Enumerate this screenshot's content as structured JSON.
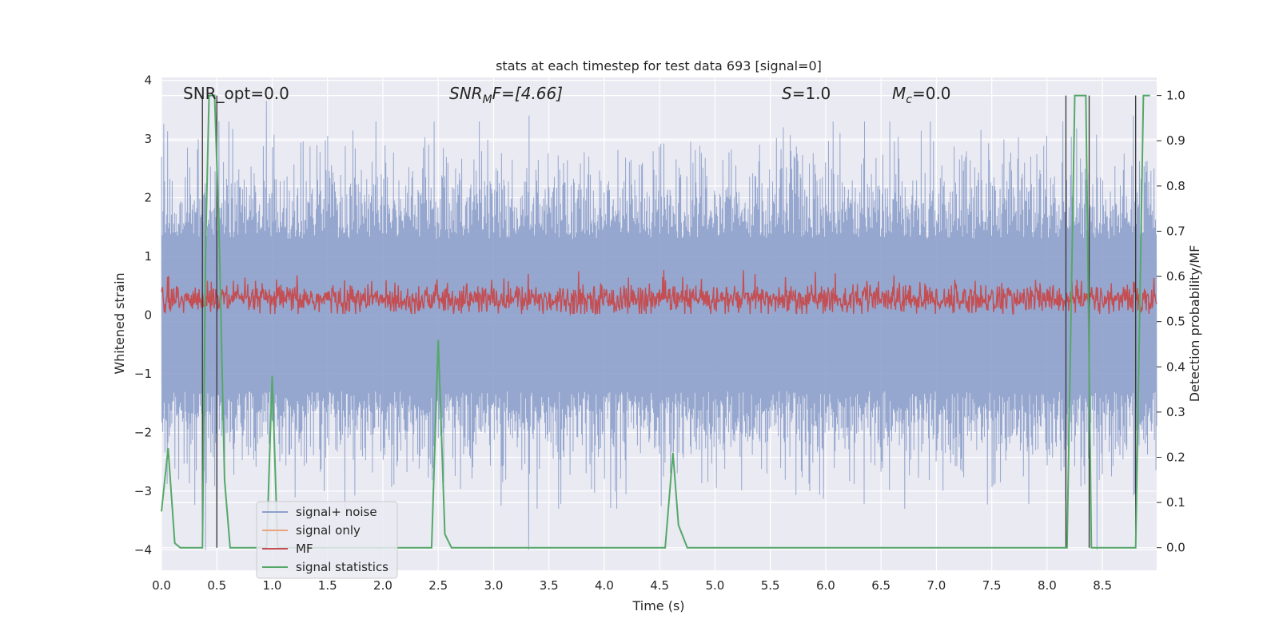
{
  "chart_data": {
    "type": "line",
    "title": "stats at each timestep for test data 693 [signal=0]",
    "xlabel": "Time (s)",
    "ylabel": "Whitened strain",
    "ylabel_right": "Detection probability/MF",
    "xlim": [
      0.0,
      8.99
    ],
    "ylim": [
      -4.35,
      4.05
    ],
    "ylim_right": [
      -0.05,
      1.04
    ],
    "xticks": [
      "0.0",
      "0.5",
      "1.0",
      "1.5",
      "2.0",
      "2.5",
      "3.0",
      "3.5",
      "4.0",
      "4.5",
      "5.0",
      "5.5",
      "6.0",
      "6.5",
      "7.0",
      "7.5",
      "8.0",
      "8.5"
    ],
    "yticks_left": [
      "−4",
      "−3",
      "−2",
      "−1",
      "0",
      "1",
      "2",
      "3",
      "4"
    ],
    "yticks_right": [
      "0.0",
      "0.1",
      "0.2",
      "0.3",
      "0.4",
      "0.5",
      "0.6",
      "0.7",
      "0.8",
      "0.9",
      "1.0"
    ],
    "grid": true,
    "legend_position": "lower-left",
    "annotations": {
      "snr_opt": "SNR_opt=0.0",
      "snr_mf_prefix": "SNR",
      "snr_mf_sub": "M",
      "snr_mf_suffix": "F=[4.66]",
      "s_var": "S",
      "s_val": "=1.0",
      "mc_var": "M",
      "mc_sub": "c",
      "mc_val": "=0.0"
    },
    "series": [
      {
        "name": "signal+ noise",
        "color": "#8da0cb",
        "description_range": [
          -3.5,
          3.6
        ]
      },
      {
        "name": "signal only",
        "color": "#e8a37f"
      },
      {
        "name": "MF",
        "color": "#c44e52",
        "description_range": [
          0.0,
          0.9
        ]
      },
      {
        "name": "signal statistics",
        "color": "#55a868",
        "x": [
          0.0,
          0.06,
          0.12,
          0.17,
          0.22,
          0.27,
          0.32,
          0.37,
          0.4,
          0.43,
          0.48,
          0.52,
          0.57,
          0.62,
          0.67,
          0.95,
          1.0,
          1.05,
          1.1,
          1.5,
          2.0,
          2.44,
          2.5,
          2.56,
          2.62,
          3.0,
          4.0,
          4.55,
          4.62,
          4.67,
          4.75,
          5.0,
          6.0,
          7.0,
          8.0,
          8.18,
          8.25,
          8.35,
          8.4,
          8.45,
          8.8,
          8.87,
          8.93
        ],
        "values": [
          0.08,
          0.22,
          0.01,
          0.0,
          0.0,
          0.0,
          0.0,
          0.0,
          0.68,
          1.0,
          1.0,
          0.7,
          0.15,
          0.0,
          0.0,
          0.0,
          0.38,
          0.0,
          0.0,
          0.0,
          0.0,
          0.0,
          0.46,
          0.03,
          0.0,
          0.0,
          0.0,
          0.0,
          0.21,
          0.05,
          0.0,
          0.0,
          0.0,
          0.0,
          0.0,
          0.0,
          1.0,
          1.0,
          0.0,
          0.0,
          0.0,
          1.0,
          1.0
        ]
      }
    ],
    "vertical_markers": [
      0.37,
      0.5,
      8.17,
      8.38,
      8.8
    ],
    "noise_peaks": {
      "positive_notable": [
        {
          "x": 0.95,
          "y": 3.65
        },
        {
          "x": 3.32,
          "y": 3.4
        },
        {
          "x": 5.62,
          "y": 3.2
        },
        {
          "x": 8.78,
          "y": 3.4
        }
      ],
      "negative_notable": [
        {
          "x": 3.32,
          "y": -4.0
        },
        {
          "x": 0.4,
          "y": -4.0
        },
        {
          "x": 0.5,
          "y": -3.9
        },
        {
          "x": 8.45,
          "y": -4.0
        }
      ]
    }
  }
}
